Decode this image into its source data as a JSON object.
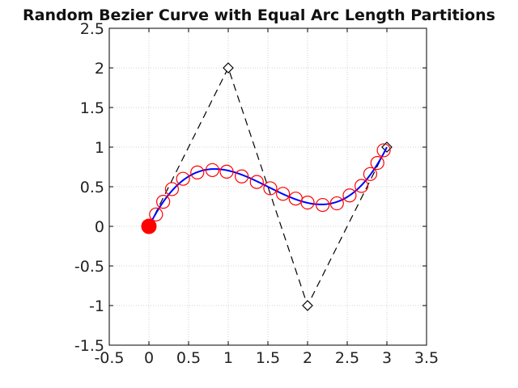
{
  "chart_data": {
    "type": "line",
    "title": "Random Bezier Curve with Equal Arc Length Partitions",
    "xlabel": "",
    "ylabel": "",
    "xlim": [
      -0.5,
      3.5
    ],
    "ylim": [
      -1.5,
      2.5
    ],
    "xticks": [
      -0.5,
      0,
      0.5,
      1,
      1.5,
      2,
      2.5,
      3,
      3.5
    ],
    "yticks": [
      -1.5,
      -1,
      -0.5,
      0,
      0.5,
      1,
      1.5,
      2,
      2.5
    ],
    "xtick_labels": [
      "-0.5",
      "0",
      "0.5",
      "1",
      "1.5",
      "2",
      "2.5",
      "3",
      "3.5"
    ],
    "ytick_labels": [
      "-1.5",
      "-1",
      "-0.5",
      "0",
      "0.5",
      "1",
      "1.5",
      "2",
      "2.5"
    ],
    "grid": true,
    "series": [
      {
        "role": "control-polygon",
        "style": "dashed black with diamond markers",
        "color": "#000000",
        "x": [
          0,
          1,
          2,
          3
        ],
        "y": [
          0,
          2,
          -1,
          1
        ]
      },
      {
        "role": "bezier-curve",
        "style": "solid blue line",
        "color": "#0000ff",
        "control_points_x": [
          0,
          1,
          2,
          3
        ],
        "control_points_y": [
          0,
          2,
          -1,
          1
        ]
      },
      {
        "role": "equal-arc-length-partition-points",
        "style": "red open circles",
        "color": "#ff0000",
        "x": [
          0.09,
          0.18,
          0.29,
          0.43,
          0.61,
          0.8,
          0.98,
          1.17,
          1.36,
          1.53,
          1.69,
          1.85,
          2.0,
          2.19,
          2.37,
          2.53,
          2.68,
          2.79,
          2.88,
          2.96
        ],
        "y": [
          0.15,
          0.31,
          0.47,
          0.6,
          0.68,
          0.71,
          0.69,
          0.63,
          0.56,
          0.48,
          0.41,
          0.35,
          0.3,
          0.27,
          0.29,
          0.39,
          0.51,
          0.66,
          0.8,
          0.96
        ]
      },
      {
        "role": "current-point",
        "style": "filled red circle",
        "color": "#ff0000",
        "x": [
          0
        ],
        "y": [
          0
        ]
      }
    ]
  }
}
